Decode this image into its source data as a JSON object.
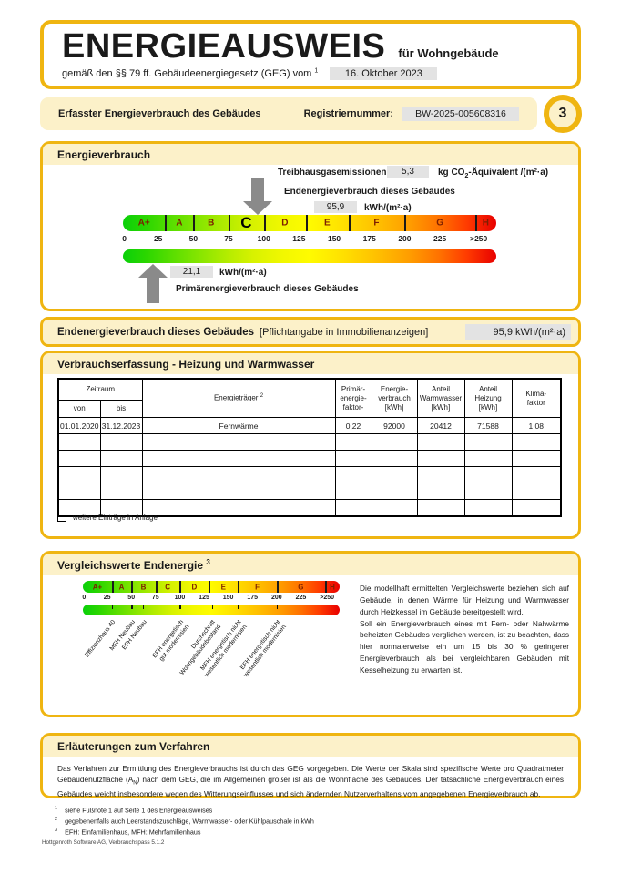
{
  "colors": {
    "gold": "#EFB511",
    "cream": "#FCF1C9",
    "valuebox": "#E3E3E3",
    "arrow": "#8A8A8A"
  },
  "header": {
    "title": "ENERGIEAUSWEIS",
    "for_label": "für Wohngebäude",
    "law_text": "gemäß den §§ 79 ff. Gebäudeenergiegesetz (GEG) vom",
    "law_sup": "1",
    "law_date": "16. Oktober 2023"
  },
  "register_band": {
    "label": "Erfasster Energieverbrauch des Gebäudes",
    "reg_label": "Registriernummer:",
    "reg_value": "BW-2025-005608316",
    "page_number": "3"
  },
  "consumption": {
    "title": "Energieverbrauch",
    "ghg_label": "Treibhausgasemissionen",
    "ghg_value": "5,3",
    "ghg_unit_pre": "kg CO",
    "ghg_unit_sub": "2",
    "ghg_unit_post": "-Äquivalent /(m²·a)",
    "end_label": "Endenergieverbrauch dieses Gebäudes",
    "end_value": "95,9",
    "end_unit": "kWh/(m²·a)",
    "prim_value": "21,1",
    "prim_unit": "kWh/(m²·a)",
    "prim_label": "Primärenergieverbrauch dieses Gebäudes"
  },
  "scale": {
    "max": 265,
    "highlight": "C",
    "end_marker_value": 95.9,
    "prim_marker_value": 21.1,
    "classes": [
      {
        "label": "A+",
        "from": 0,
        "to": 30
      },
      {
        "label": "A",
        "from": 30,
        "to": 50
      },
      {
        "label": "B",
        "from": 50,
        "to": 75
      },
      {
        "label": "C",
        "from": 75,
        "to": 100
      },
      {
        "label": "D",
        "from": 100,
        "to": 130
      },
      {
        "label": "E",
        "from": 130,
        "to": 160
      },
      {
        "label": "F",
        "from": 160,
        "to": 200
      },
      {
        "label": "G",
        "from": 200,
        "to": 250
      },
      {
        "label": "H",
        "from": 250,
        "to": 265
      }
    ],
    "ticks": [
      {
        "label": "0",
        "value": 0
      },
      {
        "label": "25",
        "value": 25
      },
      {
        "label": "50",
        "value": 50
      },
      {
        "label": "75",
        "value": 75
      },
      {
        "label": "100",
        "value": 100
      },
      {
        "label": "125",
        "value": 125
      },
      {
        "label": "150",
        "value": 150
      },
      {
        "label": "175",
        "value": 175
      },
      {
        "label": "200",
        "value": 200
      },
      {
        "label": "225",
        "value": 225
      },
      {
        "label": ">250",
        "value": 255
      }
    ]
  },
  "mandatory": {
    "label": "Endenergieverbrauch dieses Gebäudes",
    "note": "[Pflichtangabe in Immobilienanzeigen]",
    "value": "95,9 kWh/(m²·a)"
  },
  "table": {
    "title": "Verbrauchserfassung - Heizung und Warmwasser",
    "headers": {
      "zeitraum": "Zeitraum",
      "von": "von",
      "bis": "bis",
      "energietraeger": "Energieträger",
      "energietraeger_sup": "2",
      "pef": "Primär-\nenergie-\nfaktor-",
      "verbrauch": "Energie-\nverbrauch\n[kWh]",
      "anteil_ww": "Anteil\nWarmwasser\n[kWh]",
      "anteil_hz": "Anteil\nHeizung\n[kWh]",
      "klima": "Klima-\nfaktor"
    },
    "rows": [
      [
        "01.01.2020",
        "31.12.2023",
        "Fernwärme",
        "0,22",
        "92000",
        "20412",
        "71588",
        "1,08"
      ]
    ],
    "empty_rows": 5,
    "checkbox_label": "weitere Einträge in Anlage"
  },
  "comparison": {
    "title": "Vergleichswerte Endenergie",
    "title_sup": "3",
    "markers": [
      {
        "label": "Effizienzhaus 40",
        "value": 30
      },
      {
        "label": "MFH Neubau",
        "value": 50
      },
      {
        "label": "EFH Neubau",
        "value": 62
      },
      {
        "label": "EFH energetisch\ngut modernisiert",
        "value": 100
      },
      {
        "label": "Durchschnitt\nWohngebäudebestand",
        "value": 133
      },
      {
        "label": "MFH energetisch nicht\nwesentlich modernisiert",
        "value": 160
      },
      {
        "label": "EFH energetisch nicht\nwesentlich modernisiert",
        "value": 200
      }
    ],
    "para1": "Die modellhaft ermittelten Vergleichswerte beziehen sich auf Gebäude, in denen Wärme für Heizung und Warmwasser durch Heizkessel im Gebäude bereitgestellt wird.",
    "para2": "Soll ein Energieverbrauch eines mit Fern- oder Nahwärme beheizten Gebäudes verglichen werden, ist zu beachten, dass hier normalerweise ein um 15 bis 30 % geringerer Energieverbrauch als bei vergleichbaren Gebäuden mit Kesselheizung zu erwarten ist."
  },
  "explanation": {
    "title": "Erläuterungen zum Verfahren",
    "para_pre": "Das Verfahren zur Ermittlung des Energieverbrauchs ist durch das GEG vorgegeben. Die Werte der Skala sind spezifische Werte pro Quadratmeter Gebäudenutzfläche (A",
    "para_sub": "N",
    "para_post": ") nach dem GEG, die im Allgemeinen größer ist als die Wohnfläche des Gebäudes. Der tatsächliche Energieverbrauch eines Gebäudes weicht insbesondere wegen des Witterungseinflusses und sich ändernden Nutzerverhaltens vom angegebenen Energieverbrauch ab."
  },
  "footnotes": [
    {
      "sup": "1",
      "text": "siehe Fußnote 1 auf Seite 1 des Energieausweises"
    },
    {
      "sup": "2",
      "text": "gegebenenfalls auch Leerstandszuschläge, Warmwasser- oder Kühlpauschale in kWh"
    },
    {
      "sup": "3",
      "text": "EFH: Einfamilienhaus, MFH: Mehrfamilienhaus"
    }
  ],
  "footer": "Hottgenroth Software AG, Verbrauchspass 5.1.2"
}
